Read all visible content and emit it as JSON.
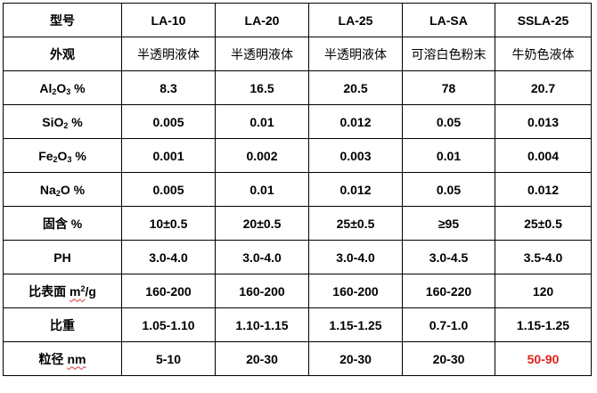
{
  "table": {
    "header": {
      "label": "型号",
      "products": [
        "LA-10",
        "LA-20",
        "LA-25",
        "LA-SA",
        "SSLA-25"
      ]
    },
    "rows": [
      {
        "label": "外观",
        "values": [
          "半透明液体",
          "半透明液体",
          "半透明液体",
          "可溶白色粉末",
          "牛奶色液体"
        ]
      },
      {
        "label_parts": [
          "Al",
          "2",
          "O",
          "3",
          " %"
        ],
        "values": [
          "8.3",
          "16.5",
          "20.5",
          "78",
          "20.7"
        ]
      },
      {
        "label_parts": [
          "SiO",
          "2",
          " %"
        ],
        "values": [
          "0.005",
          "0.01",
          "0.012",
          "0.05",
          "0.013"
        ]
      },
      {
        "label_parts": [
          "Fe",
          "2",
          "O",
          "3",
          " %"
        ],
        "values": [
          "0.001",
          "0.002",
          "0.003",
          "0.01",
          "0.004"
        ]
      },
      {
        "label_parts": [
          "Na",
          "2",
          "O %"
        ],
        "values": [
          "0.005",
          "0.01",
          "0.012",
          "0.05",
          "0.012"
        ]
      },
      {
        "label": "固含 %",
        "values": [
          "10±0.5",
          "20±0.5",
          "25±0.5",
          "≥95",
          "25±0.5"
        ]
      },
      {
        "label": "PH",
        "values": [
          "3.0-4.0",
          "3.0-4.0",
          "3.0-4.0",
          "3.0-4.5",
          "3.5-4.0"
        ]
      },
      {
        "label_parts": [
          "比表面 ",
          "m",
          "2",
          "/g"
        ],
        "values": [
          "160-200",
          "160-200",
          "160-200",
          "160-220",
          "120"
        ]
      },
      {
        "label": "比重",
        "values": [
          "1.05-1.10",
          "1.10-1.15",
          "1.15-1.25",
          "0.7-1.0",
          "1.15-1.25"
        ]
      },
      {
        "label_parts": [
          "粒径 ",
          "nm"
        ],
        "values": [
          "5-10",
          "20-30",
          "20-30",
          "20-30",
          "50-90"
        ]
      }
    ]
  },
  "colors": {
    "highlight_value": "#e0211a",
    "border": "#000000"
  }
}
